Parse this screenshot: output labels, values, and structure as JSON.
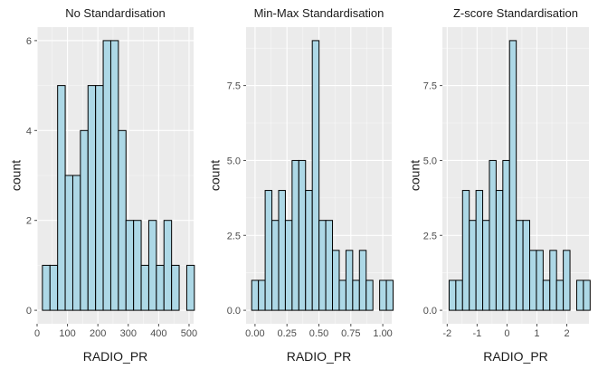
{
  "colors": {
    "panel_bg": "#EBEBEB",
    "grid_major": "#FFFFFF",
    "bar_fill": "#ADD8E6",
    "bar_stroke": "#000000",
    "tick_color": "#4D4D4D"
  },
  "chart_data": [
    {
      "type": "bar",
      "subtype": "histogram",
      "title": "No Standardisation",
      "xlabel": "RADIO_PR",
      "ylabel": "count",
      "xlim": [
        0,
        515
      ],
      "ylim": [
        0,
        6
      ],
      "xticks": [
        0,
        100,
        200,
        300,
        400,
        500
      ],
      "xtick_labels": [
        "0",
        "100",
        "200",
        "300",
        "400",
        "500"
      ],
      "yticks": [
        0,
        2,
        4,
        6
      ],
      "ytick_labels": [
        "0",
        "2",
        "4",
        "6"
      ],
      "grid": true,
      "bin_start": 17.5,
      "bin_width": 25,
      "counts": [
        1,
        1,
        5,
        3,
        3,
        4,
        5,
        5,
        6,
        6,
        4,
        2,
        2,
        1,
        2,
        1,
        2,
        1,
        0,
        1
      ]
    },
    {
      "type": "bar",
      "subtype": "histogram",
      "title": "Min-Max Standardisation",
      "xlabel": "RADIO_PR",
      "ylabel": "count",
      "xlim": [
        -0.07,
        1.07
      ],
      "ylim": [
        0,
        9
      ],
      "xticks": [
        0,
        0.25,
        0.5,
        0.75,
        1.0
      ],
      "xtick_labels": [
        "0.00",
        "0.25",
        "0.50",
        "0.75",
        "1.00"
      ],
      "yticks": [
        0,
        2.5,
        5,
        7.5
      ],
      "ytick_labels": [
        "0.0",
        "2.5",
        "5.0",
        "7.5"
      ],
      "grid": true,
      "bin_start": -0.026,
      "bin_width": 0.0527,
      "counts": [
        1,
        1,
        4,
        3,
        4,
        3,
        5,
        5,
        4,
        9,
        3,
        3,
        2,
        1,
        2,
        1,
        2,
        1,
        0,
        1,
        1
      ]
    },
    {
      "type": "bar",
      "subtype": "histogram",
      "title": "Z-score Standardisation",
      "xlabel": "RADIO_PR",
      "ylabel": "count",
      "xlim": [
        -2.16,
        2.74
      ],
      "ylim": [
        0,
        9
      ],
      "xticks": [
        -2,
        -1,
        0,
        1,
        2
      ],
      "xtick_labels": [
        "-2",
        "-1",
        "0",
        "1",
        "2"
      ],
      "yticks": [
        0,
        2.5,
        5,
        7.5
      ],
      "ytick_labels": [
        "0.0",
        "2.5",
        "5.0",
        "7.5"
      ],
      "grid": true,
      "bin_start": -1.935,
      "bin_width": 0.2245,
      "counts": [
        1,
        1,
        4,
        3,
        4,
        3,
        5,
        4,
        5,
        9,
        3,
        3,
        2,
        2,
        1,
        2,
        1,
        2,
        0,
        1,
        1
      ]
    }
  ]
}
